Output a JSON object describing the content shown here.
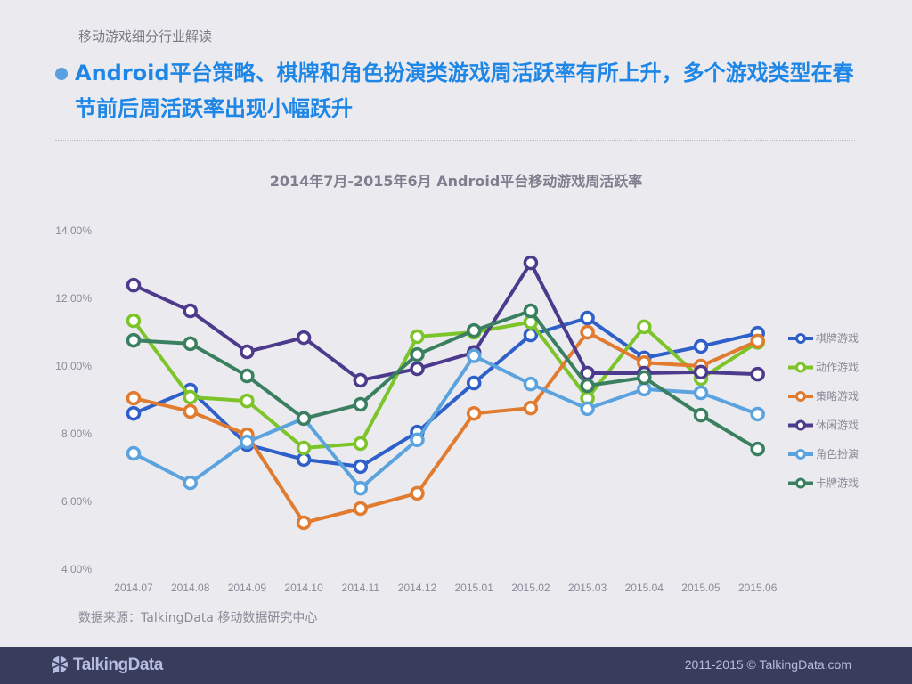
{
  "header": {
    "section_label": "移动游戏细分行业解读",
    "headline": "Android平台策略、棋牌和角色扮演类游戏周活跃率有所上升，多个游戏类型在春节前后周活跃率出现小幅跃升",
    "accent_color": "#1d86e6"
  },
  "source": "数据来源：TalkingData 移动数据研究中心",
  "footer": {
    "logo_text": "TalkingData",
    "copyright": "2011-2015 © TalkingData.com"
  },
  "chart_data": {
    "type": "line",
    "title": "2014年7月-2015年6月 Android平台移动游戏周活跃率",
    "xlabel": "",
    "ylabel": "",
    "ylim": [
      4,
      14
    ],
    "y_ticks": [
      "4.00%",
      "6.00%",
      "8.00%",
      "10.00%",
      "12.00%",
      "14.00%"
    ],
    "grid": false,
    "legend_position": "right",
    "categories": [
      "2014.07",
      "2014.08",
      "2014.09",
      "2014.10",
      "2014.11",
      "2014.12",
      "2015.01",
      "2015.02",
      "2015.03",
      "2015.04",
      "2015.05",
      "2015.06"
    ],
    "series": [
      {
        "name": "棋牌游戏",
        "color": "#2f5fc8",
        "values": [
          8.6,
          9.29,
          7.68,
          7.24,
          7.03,
          8.05,
          9.5,
          10.92,
          11.42,
          10.24,
          10.58,
          10.97
        ]
      },
      {
        "name": "动作游戏",
        "color": "#7cc42a",
        "values": [
          11.34,
          9.08,
          8.97,
          7.58,
          7.71,
          10.87,
          11.0,
          11.3,
          9.05,
          11.16,
          9.63,
          10.7
        ]
      },
      {
        "name": "策略游戏",
        "color": "#e07b30",
        "values": [
          9.05,
          8.66,
          7.97,
          5.37,
          5.79,
          6.24,
          8.6,
          8.76,
          11.0,
          10.1,
          10.0,
          10.74
        ]
      },
      {
        "name": "休闲游戏",
        "color": "#4c3a8c",
        "values": [
          12.39,
          11.63,
          10.42,
          10.84,
          9.58,
          9.92,
          10.4,
          13.05,
          9.79,
          9.79,
          9.82,
          9.76
        ]
      },
      {
        "name": "角色扮演",
        "color": "#5ba3de",
        "values": [
          7.42,
          6.55,
          7.76,
          8.45,
          6.39,
          7.82,
          10.3,
          9.47,
          8.74,
          9.32,
          9.21,
          8.58
        ]
      },
      {
        "name": "卡牌游戏",
        "color": "#3a8060",
        "values": [
          10.76,
          10.66,
          9.71,
          8.45,
          8.87,
          10.34,
          11.05,
          11.63,
          9.42,
          9.66,
          8.55,
          7.55
        ]
      }
    ]
  }
}
